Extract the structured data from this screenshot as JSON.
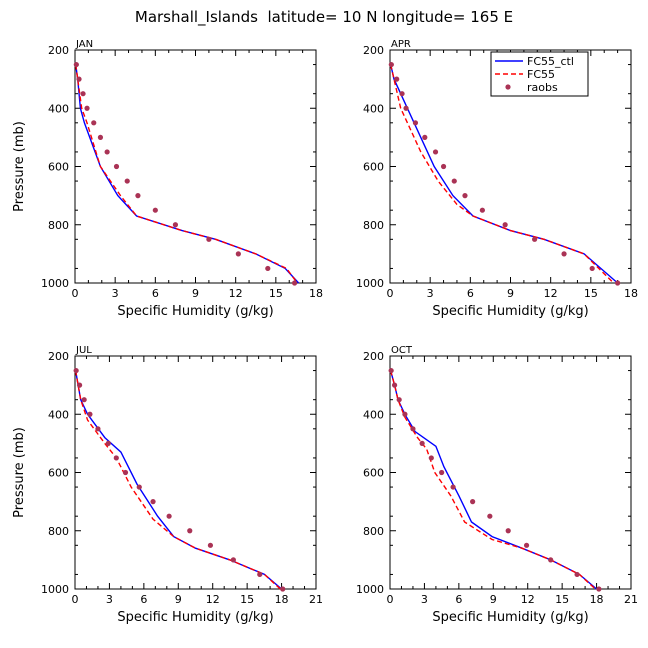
{
  "title": "Marshall_Islands  latitude= 10 N longitude= 165 E",
  "colors": {
    "ctl": "#0000ff",
    "fc55": "#ff0000",
    "raobs": "#aa3355"
  },
  "legend": {
    "placement": "top-right of APR panel",
    "entries": [
      "FC55_ctl",
      "FC55",
      "raobs"
    ]
  },
  "chart_data": [
    {
      "type": "line",
      "panel": "JAN",
      "xlabel": "Specific Humidity (g/kg)",
      "ylabel": "Pressure (mb)",
      "xlim": [
        0,
        18
      ],
      "ylim": [
        1000,
        200
      ],
      "grid": false,
      "xticks": [
        "0",
        "3",
        "6",
        "9",
        "12",
        "15",
        "18"
      ],
      "yticks": [
        "200",
        "400",
        "600",
        "800",
        "1000"
      ],
      "series": [
        {
          "name": "FC55_ctl",
          "style": "solid",
          "points": [
            [
              0.05,
              250
            ],
            [
              0.2,
              300
            ],
            [
              0.4,
              400
            ],
            [
              0.7,
              450
            ],
            [
              1.9,
              600
            ],
            [
              3.2,
              700
            ],
            [
              4.6,
              770
            ],
            [
              8.0,
              820
            ],
            [
              10.5,
              850
            ],
            [
              13.5,
              900
            ],
            [
              15.7,
              950
            ],
            [
              16.7,
              1000
            ]
          ]
        },
        {
          "name": "FC55",
          "style": "dashed",
          "points": [
            [
              0.05,
              250
            ],
            [
              0.2,
              300
            ],
            [
              0.5,
              400
            ],
            [
              0.9,
              450
            ],
            [
              1.9,
              600
            ],
            [
              3.4,
              700
            ],
            [
              4.6,
              770
            ],
            [
              8.0,
              820
            ],
            [
              10.5,
              850
            ],
            [
              13.5,
              900
            ],
            [
              15.8,
              950
            ],
            [
              16.6,
              1000
            ]
          ]
        },
        {
          "name": "raobs",
          "style": "dots",
          "points": [
            [
              0.1,
              250
            ],
            [
              0.3,
              300
            ],
            [
              0.6,
              350
            ],
            [
              0.9,
              400
            ],
            [
              1.4,
              450
            ],
            [
              1.9,
              500
            ],
            [
              2.4,
              550
            ],
            [
              3.1,
              600
            ],
            [
              3.9,
              650
            ],
            [
              4.7,
              700
            ],
            [
              6.0,
              750
            ],
            [
              7.5,
              800
            ],
            [
              10.0,
              850
            ],
            [
              12.2,
              900
            ],
            [
              14.4,
              950
            ],
            [
              16.4,
              1000
            ]
          ]
        }
      ]
    },
    {
      "type": "line",
      "panel": "APR",
      "xlabel": "Specific Humidity (g/kg)",
      "ylabel": "",
      "xlim": [
        0,
        18
      ],
      "ylim": [
        1000,
        200
      ],
      "grid": false,
      "xticks": [
        "0",
        "3",
        "6",
        "9",
        "12",
        "15",
        "18"
      ],
      "yticks": [
        "200",
        "400",
        "600",
        "800",
        "1000"
      ],
      "series": [
        {
          "name": "FC55_ctl",
          "style": "solid",
          "points": [
            [
              0.05,
              250
            ],
            [
              0.3,
              300
            ],
            [
              0.8,
              350
            ],
            [
              1.3,
              400
            ],
            [
              2.3,
              500
            ],
            [
              3.3,
              600
            ],
            [
              4.7,
              700
            ],
            [
              6.2,
              770
            ],
            [
              9.0,
              820
            ],
            [
              11.5,
              850
            ],
            [
              14.5,
              900
            ],
            [
              17.0,
              1000
            ]
          ]
        },
        {
          "name": "FC55",
          "style": "dashed",
          "points": [
            [
              0.05,
              250
            ],
            [
              0.3,
              300
            ],
            [
              0.8,
              400
            ],
            [
              1.3,
              450
            ],
            [
              2.3,
              550
            ],
            [
              3.6,
              650
            ],
            [
              5.0,
              730
            ],
            [
              6.2,
              770
            ],
            [
              9.0,
              820
            ],
            [
              11.5,
              850
            ],
            [
              14.5,
              900
            ],
            [
              16.7,
              1000
            ]
          ]
        },
        {
          "name": "raobs",
          "style": "dots",
          "points": [
            [
              0.1,
              250
            ],
            [
              0.5,
              300
            ],
            [
              0.9,
              350
            ],
            [
              1.2,
              400
            ],
            [
              1.9,
              450
            ],
            [
              2.6,
              500
            ],
            [
              3.4,
              550
            ],
            [
              4.0,
              600
            ],
            [
              4.8,
              650
            ],
            [
              5.6,
              700
            ],
            [
              6.9,
              750
            ],
            [
              8.6,
              800
            ],
            [
              10.8,
              850
            ],
            [
              13.0,
              900
            ],
            [
              15.1,
              950
            ],
            [
              17.0,
              1000
            ]
          ]
        }
      ]
    },
    {
      "type": "line",
      "panel": "JUL",
      "xlabel": "Specific Humidity (g/kg)",
      "ylabel": "Pressure (mb)",
      "xlim": [
        0,
        21
      ],
      "ylim": [
        1000,
        200
      ],
      "grid": false,
      "xticks": [
        "0",
        "3",
        "6",
        "9",
        "12",
        "15",
        "18",
        "21"
      ],
      "yticks": [
        "200",
        "400",
        "600",
        "800",
        "1000"
      ],
      "series": [
        {
          "name": "FC55_ctl",
          "style": "solid",
          "points": [
            [
              0.05,
              250
            ],
            [
              0.5,
              350
            ],
            [
              1.1,
              400
            ],
            [
              2.6,
              480
            ],
            [
              4.0,
              530
            ],
            [
              5.4,
              640
            ],
            [
              7.2,
              750
            ],
            [
              8.6,
              820
            ],
            [
              10.5,
              860
            ],
            [
              13.5,
              900
            ],
            [
              16.5,
              950
            ],
            [
              18.0,
              1000
            ]
          ]
        },
        {
          "name": "FC55",
          "style": "dashed",
          "points": [
            [
              0.05,
              250
            ],
            [
              0.5,
              350
            ],
            [
              1.1,
              420
            ],
            [
              2.6,
              500
            ],
            [
              3.6,
              550
            ],
            [
              4.9,
              650
            ],
            [
              6.8,
              760
            ],
            [
              8.6,
              820
            ],
            [
              10.5,
              860
            ],
            [
              13.5,
              900
            ],
            [
              16.5,
              950
            ],
            [
              17.9,
              1000
            ]
          ]
        },
        {
          "name": "raobs",
          "style": "dots",
          "points": [
            [
              0.1,
              250
            ],
            [
              0.4,
              300
            ],
            [
              0.8,
              350
            ],
            [
              1.3,
              400
            ],
            [
              2.0,
              450
            ],
            [
              2.9,
              500
            ],
            [
              3.6,
              550
            ],
            [
              4.4,
              600
            ],
            [
              5.6,
              650
            ],
            [
              6.8,
              700
            ],
            [
              8.2,
              750
            ],
            [
              10.0,
              800
            ],
            [
              11.8,
              850
            ],
            [
              13.8,
              900
            ],
            [
              16.1,
              950
            ],
            [
              18.1,
              1000
            ]
          ]
        }
      ]
    },
    {
      "type": "line",
      "panel": "OCT",
      "xlabel": "Specific Humidity (g/kg)",
      "ylabel": "",
      "xlim": [
        0,
        21
      ],
      "ylim": [
        1000,
        200
      ],
      "grid": false,
      "xticks": [
        "0",
        "3",
        "6",
        "9",
        "12",
        "15",
        "18",
        "21"
      ],
      "yticks": [
        "200",
        "400",
        "600",
        "800",
        "1000"
      ],
      "series": [
        {
          "name": "FC55_ctl",
          "style": "solid",
          "points": [
            [
              0.05,
              250
            ],
            [
              0.4,
              300
            ],
            [
              0.7,
              350
            ],
            [
              1.3,
              400
            ],
            [
              2.2,
              460
            ],
            [
              4.0,
              510
            ],
            [
              4.7,
              580
            ],
            [
              6.0,
              680
            ],
            [
              7.1,
              770
            ],
            [
              8.9,
              820
            ],
            [
              11.5,
              860
            ],
            [
              14.0,
              900
            ],
            [
              16.5,
              950
            ],
            [
              18.0,
              1000
            ]
          ]
        },
        {
          "name": "FC55",
          "style": "dashed",
          "points": [
            [
              0.05,
              250
            ],
            [
              0.4,
              300
            ],
            [
              0.7,
              350
            ],
            [
              1.3,
              410
            ],
            [
              2.4,
              480
            ],
            [
              3.2,
              520
            ],
            [
              3.9,
              600
            ],
            [
              5.3,
              680
            ],
            [
              6.5,
              770
            ],
            [
              8.9,
              830
            ],
            [
              11.5,
              860
            ],
            [
              14.0,
              900
            ],
            [
              16.5,
              950
            ],
            [
              17.9,
              1000
            ]
          ]
        },
        {
          "name": "raobs",
          "style": "dots",
          "points": [
            [
              0.1,
              250
            ],
            [
              0.4,
              300
            ],
            [
              0.8,
              350
            ],
            [
              1.3,
              400
            ],
            [
              2.0,
              450
            ],
            [
              2.8,
              500
            ],
            [
              3.6,
              550
            ],
            [
              4.5,
              600
            ],
            [
              5.5,
              650
            ],
            [
              7.2,
              700
            ],
            [
              8.7,
              750
            ],
            [
              10.3,
              800
            ],
            [
              11.9,
              850
            ],
            [
              14.0,
              900
            ],
            [
              16.3,
              950
            ],
            [
              18.2,
              1000
            ]
          ]
        }
      ]
    }
  ]
}
